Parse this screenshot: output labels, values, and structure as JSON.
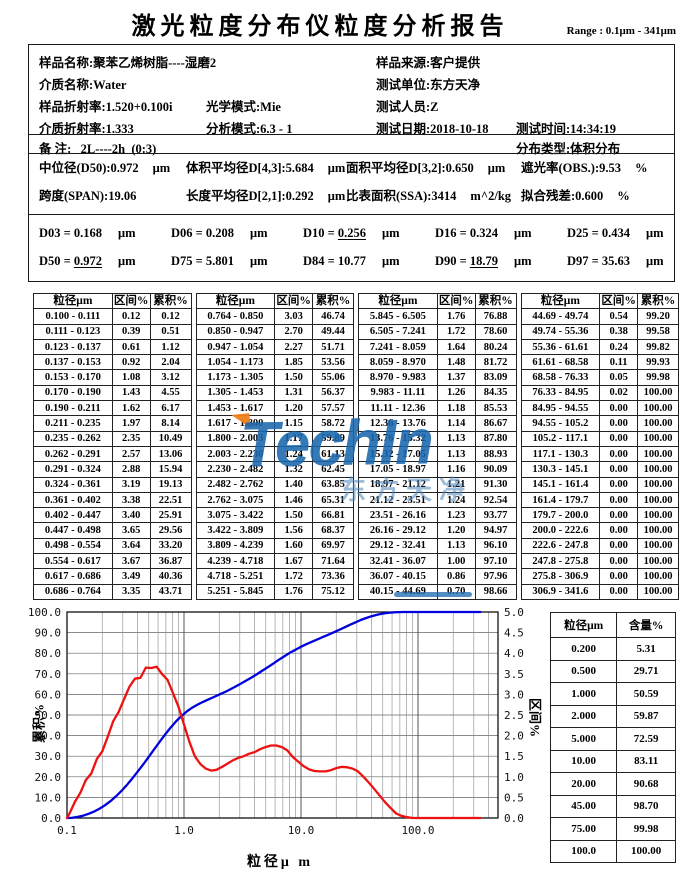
{
  "page": {
    "title": "激光粒度分布仪粒度分析报告",
    "range_label": "Range : 0.1μm - 341μm"
  },
  "info": {
    "sample_name": "样品名称:聚苯乙烯树脂----湿磨2",
    "sample_source": "样品来源:客户提供",
    "medium_name": "介质名称:Water",
    "test_unit": "测试单位:东方天净",
    "sample_ri": "样品折射率:1.520+0.100i",
    "optical_mode": "光学模式:Mie",
    "tester": "测试人员:Z",
    "medium_ri": "介质折射率:1.333",
    "analysis_mode": "分析模式:6.3 - 1",
    "test_date": "测试日期:2018-10-18",
    "test_time": "测试时间:14:34:19",
    "remark": "备 注:   2L----2h  (0:3)",
    "dist_type": "分布类型:体积分布"
  },
  "summary": {
    "rows": [
      [
        {
          "text": "中位径(D50):0.972",
          "unit": "μm"
        },
        {
          "text": "体积平均径D[4,3]:5.684",
          "unit": "μm"
        },
        {
          "text": "面积平均径D[3,2]:0.650",
          "unit": "μm"
        },
        {
          "text": "遮光率(OBS.):9.53",
          "unit": "%"
        }
      ],
      [
        {
          "text": "跨度(SPAN):19.06",
          "unit": ""
        },
        {
          "text": "长度平均径D[2,1]:0.292",
          "unit": "μm"
        },
        {
          "text": "比表面积(SSA):3414",
          "unit": "m^2/kg"
        },
        {
          "text": "拟合残差:0.600",
          "unit": "%"
        }
      ]
    ]
  },
  "dvalues": [
    {
      "label": "D03",
      "value": "0.168",
      "unit": "μm",
      "underline": false
    },
    {
      "label": "D06",
      "value": "0.208",
      "unit": "μm",
      "underline": false
    },
    {
      "label": "D10",
      "value": "0.256",
      "unit": "μm",
      "underline": true
    },
    {
      "label": "D16",
      "value": "0.324",
      "unit": "μm",
      "underline": false
    },
    {
      "label": "D25",
      "value": "0.434",
      "unit": "μm",
      "underline": false
    },
    {
      "label": "D50",
      "value": "0.972",
      "unit": "μm",
      "underline": true
    },
    {
      "label": "D75",
      "value": "5.801",
      "unit": "μm",
      "underline": false
    },
    {
      "label": "D84",
      "value": "10.77",
      "unit": "μm",
      "underline": false
    },
    {
      "label": "D90",
      "value": "18.79",
      "unit": "μm",
      "underline": true
    },
    {
      "label": "D97",
      "value": "35.63",
      "unit": "μm",
      "underline": false
    }
  ],
  "distribution_table": {
    "headers": [
      "粒径μm",
      "区间%",
      "累积%"
    ],
    "groups": 4,
    "rows_per_group": 19
  },
  "chart_data": {
    "type": "line",
    "x_scale": "log",
    "xlabel": "粒径μ m",
    "ylabel_left": "累积%",
    "ylabel_right": "区间%",
    "xlim": [
      0.1,
      483
    ],
    "x_ticks": [
      "0.1",
      "1.0",
      "10.0",
      "100.0"
    ],
    "ylim_left": [
      0,
      100
    ],
    "ytick_step_left": 10,
    "ylim_right": [
      0,
      5
    ],
    "ytick_step_right": 0.5,
    "grid": true,
    "bin_edges_um": [
      0.1,
      0.111,
      0.123,
      0.137,
      0.153,
      0.17,
      0.19,
      0.211,
      0.235,
      0.262,
      0.291,
      0.324,
      0.361,
      0.402,
      0.447,
      0.498,
      0.554,
      0.617,
      0.686,
      0.764,
      0.85,
      0.947,
      1.054,
      1.173,
      1.305,
      1.453,
      1.617,
      1.8,
      2.003,
      2.23,
      2.482,
      2.762,
      3.075,
      3.422,
      3.809,
      4.239,
      4.718,
      5.251,
      5.845,
      6.505,
      7.241,
      8.059,
      8.97,
      9.983,
      11.11,
      12.36,
      13.76,
      15.32,
      17.05,
      18.97,
      21.12,
      23.51,
      26.16,
      29.12,
      32.41,
      36.07,
      40.15,
      44.69,
      49.74,
      55.36,
      61.61,
      68.58,
      76.33,
      84.95,
      94.55,
      105.2,
      117.1,
      130.3,
      145.1,
      161.4,
      179.7,
      200,
      222.6,
      247.8,
      275.8,
      306.9,
      341.6
    ],
    "series": [
      {
        "name": "累积%",
        "axis": "left",
        "color": "#0000dd",
        "x_mode": "bin_upper",
        "values": [
          0.12,
          0.51,
          1.12,
          2.04,
          3.12,
          4.55,
          6.17,
          8.14,
          10.49,
          13.06,
          15.94,
          19.13,
          22.51,
          25.91,
          29.56,
          33.2,
          36.87,
          40.36,
          43.71,
          46.74,
          49.44,
          51.71,
          53.56,
          55.06,
          56.37,
          57.57,
          58.72,
          59.89,
          61.13,
          62.45,
          63.85,
          65.31,
          66.81,
          68.37,
          69.97,
          71.64,
          73.36,
          75.12,
          76.88,
          78.6,
          80.24,
          81.72,
          83.09,
          84.35,
          85.53,
          86.67,
          87.8,
          88.93,
          90.09,
          91.3,
          92.54,
          93.77,
          94.97,
          96.1,
          97.1,
          97.96,
          98.66,
          99.2,
          99.58,
          99.82,
          99.93,
          99.98,
          100,
          100,
          100,
          100,
          100,
          100,
          100,
          100,
          100,
          100,
          100,
          100,
          100,
          100
        ]
      },
      {
        "name": "区间%",
        "axis": "right",
        "color": "#ee1111",
        "x_mode": "bin_geomean",
        "values": [
          0.12,
          0.39,
          0.61,
          0.92,
          1.08,
          1.43,
          1.62,
          1.97,
          2.35,
          2.57,
          2.88,
          3.19,
          3.38,
          3.4,
          3.65,
          3.64,
          3.67,
          3.49,
          3.35,
          3.03,
          2.7,
          2.27,
          1.85,
          1.5,
          1.31,
          1.2,
          1.15,
          1.17,
          1.24,
          1.32,
          1.4,
          1.46,
          1.5,
          1.56,
          1.6,
          1.67,
          1.72,
          1.76,
          1.76,
          1.72,
          1.64,
          1.48,
          1.37,
          1.26,
          1.18,
          1.14,
          1.13,
          1.13,
          1.16,
          1.21,
          1.24,
          1.23,
          1.2,
          1.13,
          1,
          0.86,
          0.7,
          0.54,
          0.38,
          0.24,
          0.11,
          0.05,
          0.02,
          0,
          0,
          0,
          0,
          0,
          0,
          0,
          0,
          0,
          0,
          0,
          0,
          0
        ]
      }
    ]
  },
  "content_table": {
    "headers": [
      "粒径μm",
      "含量%"
    ],
    "rows": [
      [
        "0.200",
        "5.31"
      ],
      [
        "0.500",
        "29.71"
      ],
      [
        "1.000",
        "50.59"
      ],
      [
        "2.000",
        "59.87"
      ],
      [
        "5.000",
        "72.59"
      ],
      [
        "10.00",
        "83.11"
      ],
      [
        "20.00",
        "90.68"
      ],
      [
        "45.00",
        "98.70"
      ],
      [
        "75.00",
        "99.98"
      ],
      [
        "100.0",
        "100.00"
      ]
    ]
  },
  "watermark": {
    "brand": "TechIn",
    "cn": "东方天净"
  }
}
